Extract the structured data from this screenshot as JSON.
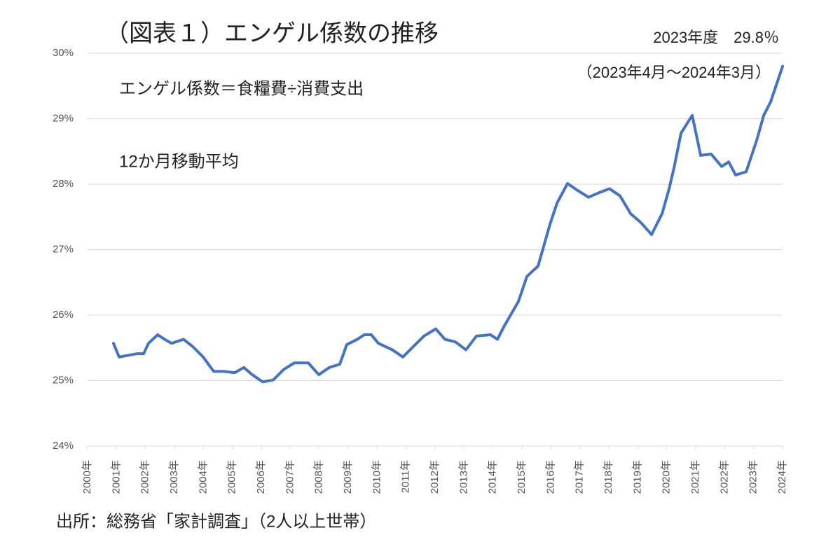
{
  "chart_data": {
    "type": "line",
    "title": "（図表１）エンゲル係数の推移",
    "annotations": [
      "2023年度　29.8％",
      "（2023年4月～2024年3月）",
      "エンゲル係数＝食糧費÷消費支出",
      "12か月移動平均"
    ],
    "source": "出所：総務省「家計調査」（2人以上世帯）",
    "x": [
      2000.895,
      2001.089,
      2001.331,
      2001.694,
      2001.936,
      2002.105,
      2002.42,
      2002.661,
      2002.903,
      2003.315,
      2003.629,
      2003.992,
      2004.355,
      2004.718,
      2005.081,
      2005.396,
      2005.686,
      2006.049,
      2006.412,
      2006.775,
      2007.138,
      2007.622,
      2007.985,
      2008.347,
      2008.71,
      2008.952,
      2009.315,
      2009.557,
      2009.799,
      2010.041,
      2010.525,
      2010.888,
      2011.251,
      2011.614,
      2012.025,
      2012.34,
      2012.703,
      2013.066,
      2013.429,
      2013.913,
      2014.155,
      2014.397,
      2014.881,
      2015.171,
      2015.558,
      2015.97,
      2016.211,
      2016.574,
      2016.937,
      2017.3,
      2017.663,
      2018.026,
      2018.389,
      2018.752,
      2019.115,
      2019.477,
      2019.84,
      2020.082,
      2020.252,
      2020.494,
      2020.881,
      2021.171,
      2021.534,
      2021.897,
      2022.139,
      2022.381,
      2022.744,
      2023.107,
      2023.349,
      2023.591,
      2024.0
    ],
    "series": [
      {
        "color": "#4472c4",
        "values": [
          25.57,
          25.36,
          25.38,
          25.41,
          25.41,
          25.57,
          25.7,
          25.63,
          25.57,
          25.63,
          25.52,
          25.36,
          25.14,
          25.14,
          25.12,
          25.2,
          25.09,
          24.98,
          25.01,
          25.17,
          25.27,
          25.27,
          25.09,
          25.2,
          25.25,
          25.55,
          25.63,
          25.7,
          25.7,
          25.57,
          25.47,
          25.36,
          25.52,
          25.68,
          25.79,
          25.63,
          25.59,
          25.47,
          25.68,
          25.7,
          25.63,
          25.84,
          26.21,
          26.59,
          26.75,
          27.39,
          27.71,
          28.01,
          27.9,
          27.8,
          27.87,
          27.93,
          27.82,
          27.55,
          27.41,
          27.23,
          27.55,
          27.93,
          28.25,
          28.78,
          29.05,
          28.44,
          28.46,
          28.27,
          28.34,
          28.14,
          28.19,
          28.67,
          29.05,
          29.26,
          29.8
        ]
      }
    ],
    "xlim": [
      2000,
      2024
    ],
    "ylim": [
      24,
      30
    ],
    "xticks": [
      {
        "value": 2000,
        "label": "2000年"
      },
      {
        "value": 2001,
        "label": "2001年"
      },
      {
        "value": 2002,
        "label": "2002年"
      },
      {
        "value": 2003,
        "label": "2003年"
      },
      {
        "value": 2004,
        "label": "2004年"
      },
      {
        "value": 2005,
        "label": "2005年"
      },
      {
        "value": 2006,
        "label": "2006年"
      },
      {
        "value": 2007,
        "label": "2007年"
      },
      {
        "value": 2008,
        "label": "2008年"
      },
      {
        "value": 2009,
        "label": "2009年"
      },
      {
        "value": 2010,
        "label": "2010年"
      },
      {
        "value": 2011,
        "label": "2011年"
      },
      {
        "value": 2012,
        "label": "2012年"
      },
      {
        "value": 2013,
        "label": "2013年"
      },
      {
        "value": 2014,
        "label": "2014年"
      },
      {
        "value": 2015,
        "label": "2015年"
      },
      {
        "value": 2016,
        "label": "2016年"
      },
      {
        "value": 2017,
        "label": "2017年"
      },
      {
        "value": 2018,
        "label": "2018年"
      },
      {
        "value": 2019,
        "label": "2019年"
      },
      {
        "value": 2020,
        "label": "2020年"
      },
      {
        "value": 2021,
        "label": "2021年"
      },
      {
        "value": 2022,
        "label": "2022年"
      },
      {
        "value": 2023,
        "label": "2023年"
      },
      {
        "value": 2024,
        "label": "2024年"
      }
    ],
    "yticks": [
      {
        "value": 24,
        "label": "24%"
      },
      {
        "value": 25,
        "label": "25%"
      },
      {
        "value": 26,
        "label": "26%"
      },
      {
        "value": 27,
        "label": "27%"
      },
      {
        "value": 28,
        "label": "28%"
      },
      {
        "value": 29,
        "label": "29%"
      },
      {
        "value": 30,
        "label": "30%"
      }
    ],
    "grid": true
  }
}
